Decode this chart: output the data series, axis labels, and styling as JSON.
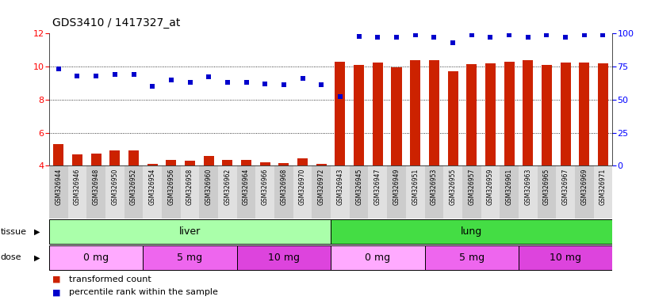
{
  "title": "GDS3410 / 1417327_at",
  "samples": [
    "GSM326944",
    "GSM326946",
    "GSM326948",
    "GSM326950",
    "GSM326952",
    "GSM326954",
    "GSM326956",
    "GSM326958",
    "GSM326960",
    "GSM326962",
    "GSM326964",
    "GSM326966",
    "GSM326968",
    "GSM326970",
    "GSM326972",
    "GSM326943",
    "GSM326945",
    "GSM326947",
    "GSM326949",
    "GSM326951",
    "GSM326953",
    "GSM326955",
    "GSM326957",
    "GSM326959",
    "GSM326961",
    "GSM326963",
    "GSM326965",
    "GSM326967",
    "GSM326969",
    "GSM326971"
  ],
  "transformed_count": [
    5.3,
    4.7,
    4.75,
    4.9,
    4.9,
    4.1,
    4.35,
    4.3,
    4.6,
    4.35,
    4.35,
    4.2,
    4.15,
    4.45,
    4.1,
    10.3,
    10.1,
    10.25,
    9.95,
    10.4,
    10.4,
    9.7,
    10.15,
    10.2,
    10.3,
    10.4,
    10.1,
    10.25,
    10.25,
    10.2
  ],
  "percentile_rank": [
    73,
    68,
    68,
    69,
    69,
    60,
    65,
    63,
    67,
    63,
    63,
    62,
    61,
    66,
    61,
    52,
    98,
    97,
    97,
    99,
    97,
    93,
    99,
    97,
    99,
    97,
    99,
    97,
    99,
    99
  ],
  "tissue_groups": [
    {
      "label": "liver",
      "start": 0,
      "end": 14,
      "color": "#aaffaa"
    },
    {
      "label": "lung",
      "start": 15,
      "end": 29,
      "color": "#44dd44"
    }
  ],
  "dose_groups": [
    {
      "label": "0 mg",
      "start": 0,
      "end": 4,
      "color": "#ffaaff"
    },
    {
      "label": "5 mg",
      "start": 5,
      "end": 9,
      "color": "#ee66ee"
    },
    {
      "label": "10 mg",
      "start": 10,
      "end": 14,
      "color": "#dd44dd"
    },
    {
      "label": "0 mg",
      "start": 15,
      "end": 19,
      "color": "#ffaaff"
    },
    {
      "label": "5 mg",
      "start": 20,
      "end": 24,
      "color": "#ee66ee"
    },
    {
      "label": "10 mg",
      "start": 25,
      "end": 29,
      "color": "#dd44dd"
    }
  ],
  "bar_color": "#cc2200",
  "dot_color": "#0000cc",
  "left_ylim": [
    4,
    12
  ],
  "right_ylim": [
    0,
    100
  ],
  "left_yticks": [
    4,
    6,
    8,
    10,
    12
  ],
  "right_yticks": [
    0,
    25,
    50,
    75,
    100
  ],
  "grid_values": [
    6,
    8,
    10
  ],
  "bg_color": "#ffffff",
  "label_bg": "#e0e0e0",
  "bar_width": 0.55,
  "title_fontsize": 10,
  "tick_fontsize": 8,
  "sample_fontsize": 5.5,
  "label_fontsize": 9
}
